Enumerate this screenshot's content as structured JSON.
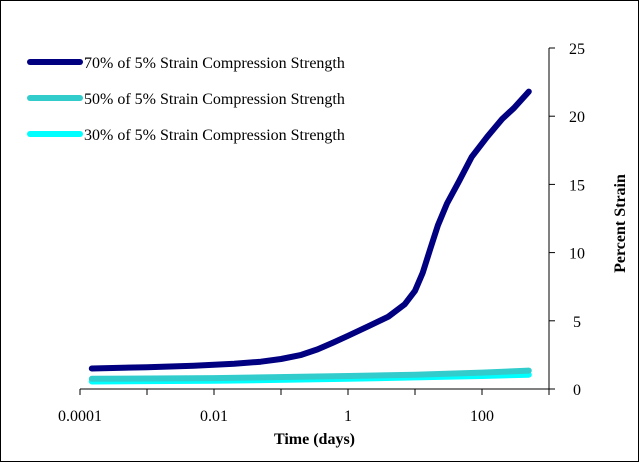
{
  "chart_data": {
    "type": "line",
    "title": "",
    "xlabel": "Time (days)",
    "ylabel": "Percent Strain",
    "x_scale": "log",
    "xlim": [
      0.0001,
      1000
    ],
    "ylim": [
      0,
      25
    ],
    "y_axis_side": "right",
    "x_ticks": [
      "0.0001",
      "0.01",
      "1",
      "100"
    ],
    "x_tick_values": [
      0.0001,
      0.01,
      1,
      100
    ],
    "y_ticks": [
      "0",
      "5",
      "10",
      "15",
      "20",
      "25"
    ],
    "y_tick_values": [
      0,
      5,
      10,
      15,
      20,
      25
    ],
    "grid": false,
    "legend_position": "top-left",
    "series": [
      {
        "name": "70% of 5% Strain Compression Strength",
        "color": "#000080",
        "points": [
          [
            0.00015,
            1.5
          ],
          [
            0.001,
            1.6
          ],
          [
            0.005,
            1.7
          ],
          [
            0.02,
            1.85
          ],
          [
            0.05,
            2.0
          ],
          [
            0.1,
            2.2
          ],
          [
            0.2,
            2.5
          ],
          [
            0.35,
            2.9
          ],
          [
            0.6,
            3.4
          ],
          [
            1.0,
            3.9
          ],
          [
            2.0,
            4.6
          ],
          [
            4.0,
            5.3
          ],
          [
            7.0,
            6.2
          ],
          [
            10,
            7.2
          ],
          [
            13,
            8.5
          ],
          [
            17,
            10.3
          ],
          [
            22,
            12.0
          ],
          [
            30,
            13.6
          ],
          [
            45,
            15.2
          ],
          [
            70,
            17.0
          ],
          [
            120,
            18.5
          ],
          [
            200,
            19.8
          ],
          [
            300,
            20.6
          ],
          [
            500,
            21.8
          ]
        ]
      },
      {
        "name": "50% of 5% Strain Compression Strength",
        "color": "#33CCCC",
        "points": [
          [
            0.00015,
            0.75
          ],
          [
            0.01,
            0.8
          ],
          [
            1,
            0.95
          ],
          [
            10,
            1.05
          ],
          [
            100,
            1.2
          ],
          [
            500,
            1.35
          ]
        ]
      },
      {
        "name": "30% of 5% Strain Compression Strength",
        "color": "#00FFFF",
        "points": [
          [
            0.00015,
            0.55
          ],
          [
            0.01,
            0.6
          ],
          [
            1,
            0.75
          ],
          [
            10,
            0.85
          ],
          [
            100,
            0.95
          ],
          [
            500,
            1.05
          ]
        ]
      }
    ]
  }
}
